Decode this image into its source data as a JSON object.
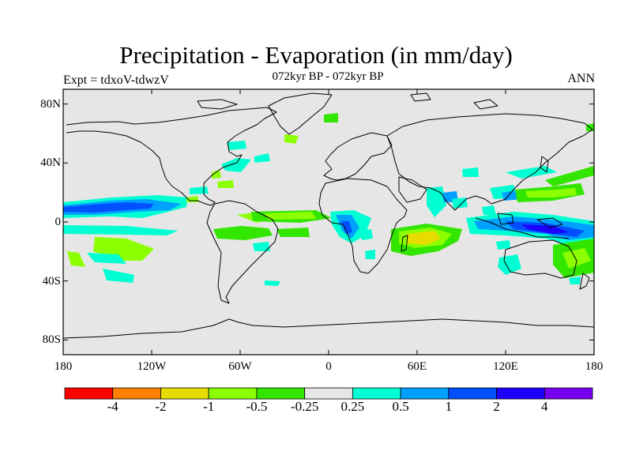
{
  "title": "Precipitation - Evaporation (in mm/day)",
  "subtitle": "072kyr BP - 072kyr BP",
  "experiment": "Expt = tdxoV-tdwzV",
  "season": "ANN",
  "map": {
    "projection": "cylindrical-equidistant",
    "lon_range": [
      -180,
      180
    ],
    "lat_range": [
      -90,
      90
    ],
    "background_color": "#e6e6e6",
    "coastline_color": "#000000",
    "lat_ticks": [
      {
        "value": 80,
        "label": "80N"
      },
      {
        "value": 40,
        "label": "40N"
      },
      {
        "value": 0,
        "label": "0"
      },
      {
        "value": -40,
        "label": "40S"
      },
      {
        "value": -80,
        "label": "80S"
      }
    ],
    "lon_ticks": [
      {
        "value": -180,
        "label": "180"
      },
      {
        "value": -120,
        "label": "120W"
      },
      {
        "value": -60,
        "label": "60W"
      },
      {
        "value": 0,
        "label": "0"
      },
      {
        "value": 60,
        "label": "60E"
      },
      {
        "value": 120,
        "label": "120E"
      },
      {
        "value": 180,
        "label": "180"
      }
    ]
  },
  "colorbar": {
    "colors": [
      "#ff0000",
      "#ff8000",
      "#e6dc00",
      "#8cff00",
      "#32e600",
      "#e6e6e6",
      "#00ffd2",
      "#00a0ff",
      "#0050ff",
      "#1e00ff",
      "#7800f0"
    ],
    "labels": [
      "-4",
      "-2",
      "-1",
      "-0.5",
      "-0.25",
      "0.25",
      "0.5",
      "1",
      "2",
      "4"
    ]
  }
}
